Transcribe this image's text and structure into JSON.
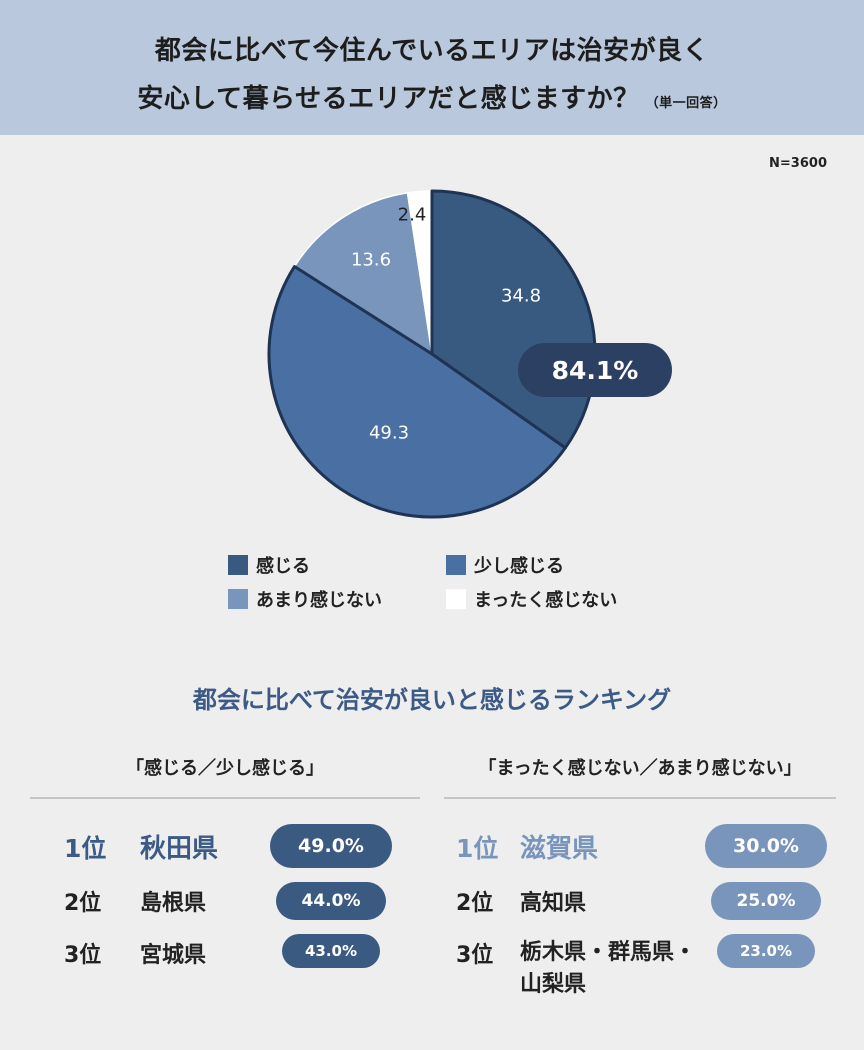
{
  "header": {
    "title_line1": "都会に比べて今住んでいるエリアは治安が良く",
    "title_line2": "安心して暮らせるエリアだと感じますか？",
    "answer_type": "（単一回答）"
  },
  "sample_size": "N=3600",
  "highlight_badge": "84.1%",
  "colors": {
    "header_bg": "#b9c8dc",
    "background": "#eeeeef",
    "feel": "#385a80",
    "somewhat_feel": "#4a6fa3",
    "not_really": "#7a95bc",
    "not_at_all": "#ffffff",
    "outline": "#1f3354",
    "badge_dark": "#2b4063",
    "ranking_title": "#3c5a86",
    "left_first": "#3c5a86",
    "right_first": "#7a95bc",
    "left_badge": "#3b5a82",
    "right_badge": "#7a95bc"
  },
  "chart_data": {
    "type": "pie",
    "title": "都会に比べて今住んでいるエリアは治安が良く安心して暮らせるエリアだと感じますか？",
    "slices": [
      {
        "label": "感じる",
        "value": 34.8
      },
      {
        "label": "少し感じる",
        "value": 49.3
      },
      {
        "label": "あまり感じない",
        "value": 13.6
      },
      {
        "label": "まったく感じない",
        "value": 2.4
      }
    ]
  },
  "legend": [
    "感じる",
    "少し感じる",
    "あまり感じない",
    "まったく感じない"
  ],
  "ranking": {
    "title": "都会に比べて治安が良いと感じるランキング",
    "left": {
      "heading": "「感じる／少し感じる」",
      "rows": [
        {
          "rank": "1位",
          "name": "秋田県",
          "value": "49.0%"
        },
        {
          "rank": "2位",
          "name": "島根県",
          "value": "44.0%"
        },
        {
          "rank": "3位",
          "name": "宮城県",
          "value": "43.0%"
        }
      ]
    },
    "right": {
      "heading": "「まったく感じない／あまり感じない」",
      "rows": [
        {
          "rank": "1位",
          "name": "滋賀県",
          "value": "30.0%"
        },
        {
          "rank": "2位",
          "name": "高知県",
          "value": "25.0%"
        },
        {
          "rank": "3位",
          "name": "栃木県・群馬県・",
          "name2": "山梨県",
          "value": "23.0%"
        }
      ]
    }
  }
}
